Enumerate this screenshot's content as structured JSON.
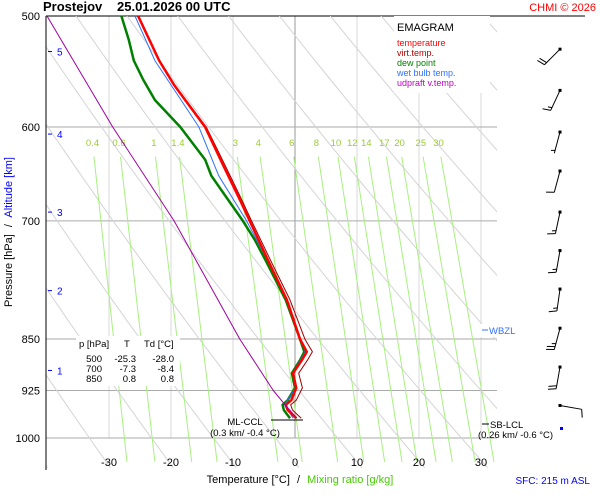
{
  "header": {
    "station": "Prostejov",
    "datetime": "25.01.2026 00 UTC",
    "copyright": "CHMI © 2026"
  },
  "chart_data": {
    "type": "line",
    "title": "EMAGRAM",
    "xlabel": "Temperature [°C]",
    "xlabel_sep": "/",
    "xlabel2": "Mixing ratio [g/kg]",
    "ylabel": "Pressure [hPa]",
    "ylabel_sep": "/",
    "ylabel2": "Altitude [km]",
    "xlim": [
      -40.2,
      32.6
    ],
    "ylim_hpa": [
      500,
      1000
    ],
    "y_scale": "log",
    "pressure_ticks": [
      "500",
      "600",
      "700",
      "850",
      "925",
      "1000"
    ],
    "temperature_ticks": [
      "-30",
      "-20",
      "-10",
      "0",
      "10",
      "20",
      "30"
    ],
    "altitude_ticks": [
      {
        "label": "5",
        "p": 530
      },
      {
        "label": "4",
        "p": 607
      },
      {
        "label": "3",
        "p": 690
      },
      {
        "label": "2",
        "p": 785
      },
      {
        "label": "1",
        "p": 895
      }
    ],
    "mixing_ratio_labels": [
      "0.4",
      "0.6",
      "1",
      "1.4",
      "3",
      "4",
      "6",
      "8",
      "10",
      "12",
      "14",
      "17",
      "20",
      "25",
      "30"
    ],
    "legend": [
      {
        "label": "temperature",
        "color": "#ff0000"
      },
      {
        "label": "virt.temp.",
        "color": "#b00000"
      },
      {
        "label": "dew point",
        "color": "#008000"
      },
      {
        "label": "wet bulb temp.",
        "color": "#3070ff"
      },
      {
        "label": "udpraft v.temp.",
        "color": "#c000c0"
      }
    ],
    "series": [
      {
        "name": "virt.temp.",
        "color": "#a00000",
        "width": 1,
        "points": [
          [
            500,
            -25.2
          ],
          [
            538,
            -21.8
          ],
          [
            560,
            -19.4
          ],
          [
            600,
            -14.3
          ],
          [
            640,
            -11.2
          ],
          [
            676,
            -8.6
          ],
          [
            700,
            -7.0
          ],
          [
            746,
            -4.0
          ],
          [
            797,
            -0.8
          ],
          [
            850,
            1.6
          ],
          [
            868,
            2.8
          ],
          [
            880,
            2.0
          ],
          [
            899,
            0.6
          ],
          [
            921,
            1.2
          ],
          [
            940,
            0.2
          ],
          [
            947,
            -0.7
          ],
          [
            955,
            -0.4
          ],
          [
            968,
            1.0
          ]
        ]
      },
      {
        "name": "dew point",
        "color": "#008000",
        "width": 2.5,
        "points": [
          [
            500,
            -28.0
          ],
          [
            520,
            -26.8
          ],
          [
            538,
            -26.0
          ],
          [
            555,
            -24.5
          ],
          [
            574,
            -22.6
          ],
          [
            600,
            -18.5
          ],
          [
            633,
            -14.5
          ],
          [
            650,
            -13.5
          ],
          [
            676,
            -10.8
          ],
          [
            700,
            -8.4
          ],
          [
            722,
            -6.5
          ],
          [
            746,
            -4.8
          ],
          [
            797,
            -1.5
          ],
          [
            850,
            0.8
          ],
          [
            868,
            1.5
          ],
          [
            880,
            0.8
          ],
          [
            899,
            -0.5
          ],
          [
            921,
            0.0
          ],
          [
            940,
            -1.2
          ],
          [
            947,
            -2.0
          ],
          [
            955,
            -1.8
          ],
          [
            968,
            -0.8
          ]
        ]
      },
      {
        "name": "wet bulb temp.",
        "color": "#3070ff",
        "width": 1,
        "points": [
          [
            500,
            -25.8
          ],
          [
            538,
            -22.6
          ],
          [
            600,
            -15.5
          ],
          [
            650,
            -12.3
          ],
          [
            700,
            -7.8
          ],
          [
            746,
            -4.5
          ],
          [
            797,
            -1.4
          ],
          [
            850,
            0.8
          ],
          [
            868,
            1.7
          ],
          [
            899,
            -0.4
          ],
          [
            921,
            0.1
          ],
          [
            947,
            -1.7
          ],
          [
            968,
            -0.3
          ]
        ]
      },
      {
        "name": "temperature",
        "color": "#ff0000",
        "width": 2.5,
        "points": [
          [
            500,
            -25.3
          ],
          [
            538,
            -21.9
          ],
          [
            560,
            -19.5
          ],
          [
            600,
            -14.5
          ],
          [
            640,
            -11.5
          ],
          [
            676,
            -8.9
          ],
          [
            700,
            -7.3
          ],
          [
            746,
            -4.4
          ],
          [
            797,
            -1.3
          ],
          [
            850,
            0.8
          ],
          [
            868,
            1.9
          ],
          [
            880,
            1.1
          ],
          [
            899,
            -0.3
          ],
          [
            921,
            0.2
          ],
          [
            940,
            -0.6
          ],
          [
            947,
            -1.5
          ],
          [
            955,
            -1.2
          ],
          [
            968,
            0.2
          ]
        ]
      },
      {
        "name": "udpraft v.temp.",
        "color": "#a000a0",
        "width": 1,
        "points": [
          [
            500,
            -40.0
          ],
          [
            600,
            -29.4
          ],
          [
            700,
            -19.5
          ],
          [
            850,
            -8.9
          ],
          [
            925,
            -3.5
          ],
          [
            947,
            -1.6
          ],
          [
            968,
            0.3
          ]
        ]
      }
    ],
    "wind_barbs": [
      {
        "p": 528,
        "dir_deg": 225,
        "speed_kt": 20
      },
      {
        "p": 565,
        "dir_deg": 205,
        "speed_kt": 15
      },
      {
        "p": 605,
        "dir_deg": 195,
        "speed_kt": 5
      },
      {
        "p": 645,
        "dir_deg": 195,
        "speed_kt": 10
      },
      {
        "p": 690,
        "dir_deg": 192,
        "speed_kt": 15
      },
      {
        "p": 735,
        "dir_deg": 190,
        "speed_kt": 15
      },
      {
        "p": 783,
        "dir_deg": 188,
        "speed_kt": 15
      },
      {
        "p": 835,
        "dir_deg": 195,
        "speed_kt": 25
      },
      {
        "p": 890,
        "dir_deg": 190,
        "speed_kt": 20
      },
      {
        "p": 948,
        "dir_deg": 100,
        "speed_kt": 10
      }
    ],
    "table": {
      "headers": [
        "p [hPa]",
        "T",
        "Td [°C]"
      ],
      "rows": [
        [
          "500",
          "-25.3",
          "-28.0"
        ],
        [
          "700",
          "-7.3",
          "-8.4"
        ],
        [
          "850",
          "0.8",
          "0.8"
        ]
      ]
    },
    "annotations": {
      "ml_ccl": {
        "label": "ML-CCL",
        "detail": "(0.3 km/ -0.4 °C)",
        "p": 955,
        "t": -0.4
      },
      "sb_lcl": {
        "label": "SB-LCL",
        "detail": "(0.26 km/ -0.6 °C)"
      },
      "wbzl": {
        "label": "WBZL",
        "p": 825
      },
      "surface": "SFC: 215 m ASL"
    }
  }
}
